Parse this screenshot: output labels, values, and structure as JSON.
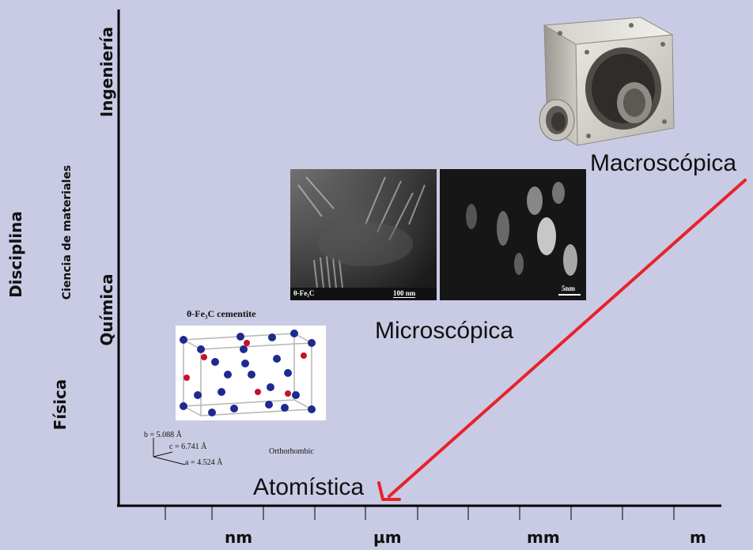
{
  "axes": {
    "y_title": "Disciplina",
    "y_levels": [
      "Ingeniería",
      "Ciencia de materiales",
      "Química",
      "Física"
    ],
    "x_units": [
      "nm",
      "µm",
      "mm",
      "m"
    ]
  },
  "scale_labels": {
    "macro": "Macroscópica",
    "micro": "Microscópica",
    "atomic": "Atomística"
  },
  "crystal": {
    "title": "θ-Fe₃C cementite",
    "lattice_b": "b = 5.088 Å",
    "lattice_c": "c = 6.741 Å",
    "lattice_a": "a = 4.524 Å",
    "system": "Orthorhombic"
  },
  "micrograph": {
    "left_label": "θ-Fe₃C",
    "scale_left": "100 nm",
    "scale_right": "5nm"
  },
  "colors": {
    "background": "#c9cbe4",
    "arrow": "#e8222a",
    "atom_blue": "#1d2a8f",
    "atom_red": "#c4122a"
  }
}
